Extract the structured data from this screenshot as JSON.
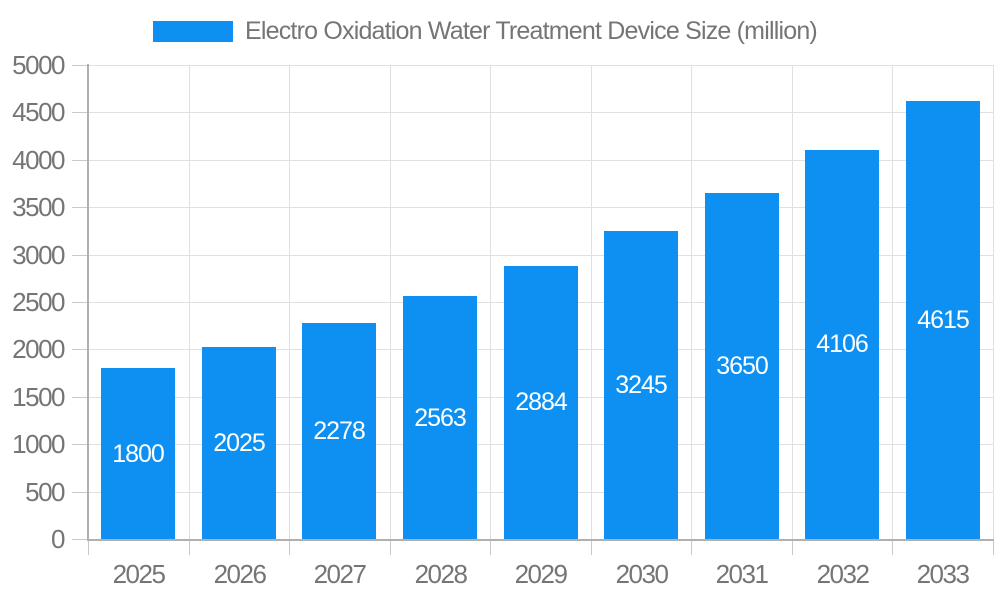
{
  "legend": {
    "label": "Electro Oxidation Water Treatment Device Size (million)"
  },
  "chart_data": {
    "type": "bar",
    "title": "Electro Oxidation Water Treatment Device Size (million)",
    "categories": [
      "2025",
      "2026",
      "2027",
      "2028",
      "2029",
      "2030",
      "2031",
      "2032",
      "2033"
    ],
    "values": [
      1800,
      2025,
      2278,
      2563,
      2884,
      3245,
      3650,
      4106,
      4615
    ],
    "xlabel": "",
    "ylabel": "",
    "ylim": [
      0,
      5000
    ],
    "ytick_step": 500,
    "grid": true,
    "legend_position": "top",
    "colors": {
      "bar": "#0d90f2",
      "bar_value_text": "#ffffff",
      "axis_text": "#757575",
      "legend_text": "#757575",
      "gridline": "#e0e0e0",
      "axis_line": "#b0b0b0",
      "tick": "#c9c9c9",
      "background": "#ffffff"
    }
  }
}
